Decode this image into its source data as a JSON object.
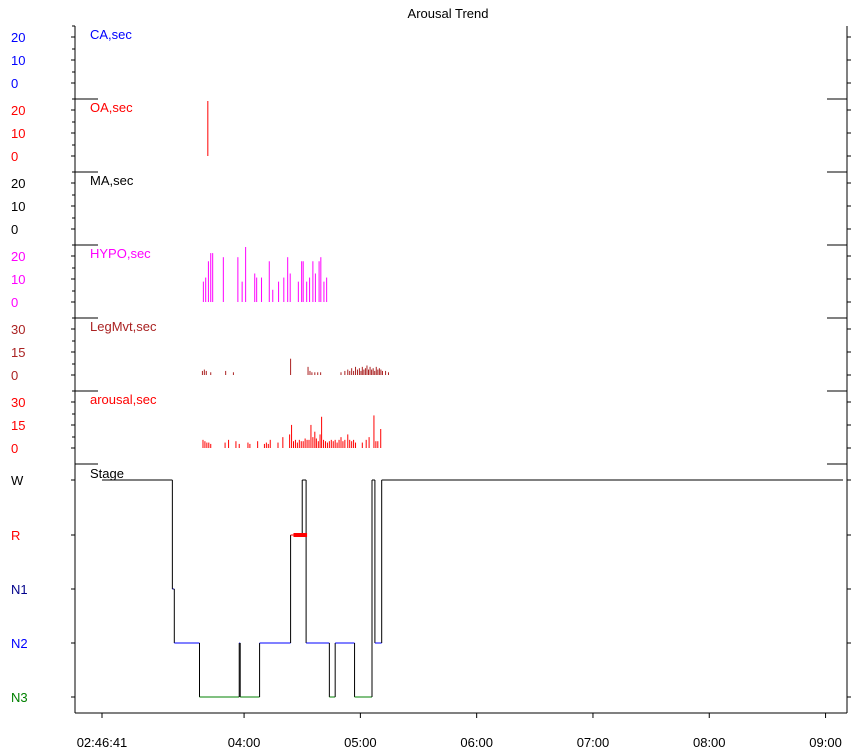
{
  "chart_data": {
    "type": "line",
    "title": "Arousal Trend",
    "x_ticks": [
      "02:46:41",
      "04:00",
      "05:00",
      "06:00",
      "07:00",
      "08:00",
      "09:00"
    ],
    "x_range_min": [
      166.7,
      549
    ],
    "colors": {
      "CA": "#0000ff",
      "OA": "#ff0000",
      "MA": "#000000",
      "HYPO": "#ff00ff",
      "LegMvt": "#aa2222",
      "arousal": "#ff0000",
      "W": "#000000",
      "R": "#ff0000",
      "N1": "#00008b",
      "N2": "#0000ff",
      "N3": "#008000"
    },
    "panels": [
      {
        "key": "CA",
        "title": "CA,sec",
        "ticks": [
          "20",
          "10",
          "0"
        ],
        "ymax": 20,
        "events": []
      },
      {
        "key": "OA",
        "title": "OA,sec",
        "ticks": [
          "20",
          "10",
          "0"
        ],
        "ymax": 20,
        "events": [
          {
            "t": 221.3,
            "v": 30
          }
        ]
      },
      {
        "key": "MA",
        "title": "MA,sec",
        "ticks": [
          "20",
          "10",
          "0"
        ],
        "ymax": 20,
        "events": []
      },
      {
        "key": "HYPO",
        "title": "HYPO,sec",
        "ticks": [
          "20",
          "10",
          "0"
        ],
        "ymax": 20,
        "events": [
          {
            "t": 219.0,
            "v": 10
          },
          {
            "t": 220.2,
            "v": 12
          },
          {
            "t": 221.6,
            "v": 20
          },
          {
            "t": 222.8,
            "v": 24
          },
          {
            "t": 223.8,
            "v": 24
          },
          {
            "t": 229.3,
            "v": 22
          },
          {
            "t": 236.8,
            "v": 22
          },
          {
            "t": 239.0,
            "v": 10
          },
          {
            "t": 240.8,
            "v": 28
          },
          {
            "t": 245.5,
            "v": 14
          },
          {
            "t": 246.5,
            "v": 12
          },
          {
            "t": 249.0,
            "v": 12
          },
          {
            "t": 253.0,
            "v": 20
          },
          {
            "t": 254.8,
            "v": 6
          },
          {
            "t": 257.8,
            "v": 10
          },
          {
            "t": 260.5,
            "v": 12
          },
          {
            "t": 262.5,
            "v": 22
          },
          {
            "t": 263.8,
            "v": 14
          },
          {
            "t": 268.0,
            "v": 10
          },
          {
            "t": 269.7,
            "v": 20
          },
          {
            "t": 270.5,
            "v": 20
          },
          {
            "t": 272.3,
            "v": 10
          },
          {
            "t": 273.8,
            "v": 12
          },
          {
            "t": 275.5,
            "v": 20
          },
          {
            "t": 276.8,
            "v": 14
          },
          {
            "t": 278.7,
            "v": 20
          },
          {
            "t": 279.6,
            "v": 22
          },
          {
            "t": 281.2,
            "v": 10
          },
          {
            "t": 282.6,
            "v": 12
          }
        ]
      },
      {
        "key": "LegMvt",
        "title": "LegMvt,sec",
        "ticks": [
          "30",
          "15",
          "0"
        ],
        "ymax": 30,
        "events": [
          {
            "t": 218.5,
            "v": 3
          },
          {
            "t": 219.5,
            "v": 4
          },
          {
            "t": 220.5,
            "v": 3
          },
          {
            "t": 222.8,
            "v": 2
          },
          {
            "t": 230.5,
            "v": 3
          },
          {
            "t": 234.5,
            "v": 2
          },
          {
            "t": 264.0,
            "v": 12
          },
          {
            "t": 273.0,
            "v": 6
          },
          {
            "t": 274.0,
            "v": 3
          },
          {
            "t": 275.0,
            "v": 2
          },
          {
            "t": 276.5,
            "v": 2
          },
          {
            "t": 278.0,
            "v": 2
          },
          {
            "t": 279.5,
            "v": 2
          },
          {
            "t": 290.0,
            "v": 2
          },
          {
            "t": 292.0,
            "v": 3
          },
          {
            "t": 293.5,
            "v": 4
          },
          {
            "t": 294.5,
            "v": 3
          },
          {
            "t": 295.5,
            "v": 5
          },
          {
            "t": 296.5,
            "v": 3
          },
          {
            "t": 297.5,
            "v": 6
          },
          {
            "t": 298.5,
            "v": 4
          },
          {
            "t": 299.5,
            "v": 5
          },
          {
            "t": 300.3,
            "v": 3
          },
          {
            "t": 301.0,
            "v": 6
          },
          {
            "t": 301.8,
            "v": 4
          },
          {
            "t": 302.6,
            "v": 5
          },
          {
            "t": 303.4,
            "v": 7
          },
          {
            "t": 304.2,
            "v": 4
          },
          {
            "t": 305.0,
            "v": 6
          },
          {
            "t": 305.8,
            "v": 4
          },
          {
            "t": 306.6,
            "v": 5
          },
          {
            "t": 307.4,
            "v": 3
          },
          {
            "t": 308.2,
            "v": 6
          },
          {
            "t": 309.0,
            "v": 4
          },
          {
            "t": 309.8,
            "v": 5
          },
          {
            "t": 310.6,
            "v": 4
          },
          {
            "t": 311.4,
            "v": 3
          },
          {
            "t": 313.0,
            "v": 3
          },
          {
            "t": 314.5,
            "v": 2
          }
        ]
      },
      {
        "key": "arousal",
        "title": "arousal,sec",
        "ticks": [
          "30",
          "15",
          "0"
        ],
        "ymax": 30,
        "events": [
          {
            "t": 218.8,
            "v": 6
          },
          {
            "t": 219.8,
            "v": 5
          },
          {
            "t": 220.8,
            "v": 4
          },
          {
            "t": 221.8,
            "v": 4
          },
          {
            "t": 222.8,
            "v": 3
          },
          {
            "t": 230.2,
            "v": 4
          },
          {
            "t": 232.0,
            "v": 6
          },
          {
            "t": 235.8,
            "v": 5
          },
          {
            "t": 237.5,
            "v": 3
          },
          {
            "t": 242.0,
            "v": 4
          },
          {
            "t": 243.0,
            "v": 3
          },
          {
            "t": 247.0,
            "v": 5
          },
          {
            "t": 250.5,
            "v": 3
          },
          {
            "t": 251.5,
            "v": 4
          },
          {
            "t": 252.5,
            "v": 3
          },
          {
            "t": 253.5,
            "v": 6
          },
          {
            "t": 257.5,
            "v": 4
          },
          {
            "t": 260.0,
            "v": 8
          },
          {
            "t": 263.5,
            "v": 10
          },
          {
            "t": 264.5,
            "v": 17
          },
          {
            "t": 265.5,
            "v": 5
          },
          {
            "t": 266.5,
            "v": 6
          },
          {
            "t": 267.5,
            "v": 4
          },
          {
            "t": 268.5,
            "v": 6
          },
          {
            "t": 269.5,
            "v": 5
          },
          {
            "t": 270.5,
            "v": 5
          },
          {
            "t": 271.5,
            "v": 7
          },
          {
            "t": 272.5,
            "v": 6
          },
          {
            "t": 273.5,
            "v": 6
          },
          {
            "t": 274.5,
            "v": 17
          },
          {
            "t": 275.5,
            "v": 8
          },
          {
            "t": 276.5,
            "v": 12
          },
          {
            "t": 277.3,
            "v": 7
          },
          {
            "t": 278.3,
            "v": 5
          },
          {
            "t": 279.2,
            "v": 10
          },
          {
            "t": 280.0,
            "v": 23
          },
          {
            "t": 281.0,
            "v": 6
          },
          {
            "t": 282.0,
            "v": 5
          },
          {
            "t": 283.0,
            "v": 4
          },
          {
            "t": 284.0,
            "v": 5
          },
          {
            "t": 285.0,
            "v": 6
          },
          {
            "t": 286.0,
            "v": 5
          },
          {
            "t": 287.0,
            "v": 6
          },
          {
            "t": 288.0,
            "v": 4
          },
          {
            "t": 289.0,
            "v": 6
          },
          {
            "t": 290.0,
            "v": 8
          },
          {
            "t": 291.0,
            "v": 5
          },
          {
            "t": 292.0,
            "v": 6
          },
          {
            "t": 293.5,
            "v": 10
          },
          {
            "t": 294.5,
            "v": 6
          },
          {
            "t": 295.5,
            "v": 5
          },
          {
            "t": 296.5,
            "v": 6
          },
          {
            "t": 297.5,
            "v": 4
          },
          {
            "t": 301.0,
            "v": 4
          },
          {
            "t": 303.0,
            "v": 6
          },
          {
            "t": 304.5,
            "v": 8
          },
          {
            "t": 307.0,
            "v": 24
          },
          {
            "t": 308.0,
            "v": 5
          },
          {
            "t": 309.0,
            "v": 5
          },
          {
            "t": 310.5,
            "v": 14
          }
        ]
      }
    ],
    "stage": {
      "title": "Stage",
      "levels": [
        "W",
        "R",
        "N1",
        "N2",
        "N3"
      ],
      "hypnogram": [
        [
          166.7,
          "W"
        ],
        [
          203,
          "W"
        ],
        [
          203,
          "N1"
        ],
        [
          204,
          "N1"
        ],
        [
          204,
          "N2"
        ],
        [
          217,
          "N2"
        ],
        [
          217,
          "N3"
        ],
        [
          237.5,
          "N3"
        ],
        [
          237.5,
          "N2"
        ],
        [
          238,
          "N2"
        ],
        [
          238,
          "N3"
        ],
        [
          248,
          "N3"
        ],
        [
          248,
          "N2"
        ],
        [
          264,
          "N2"
        ],
        [
          264,
          "R"
        ],
        [
          270,
          "R"
        ],
        [
          270,
          "W"
        ],
        [
          272,
          "W"
        ],
        [
          272,
          "N2"
        ],
        [
          284,
          "N2"
        ],
        [
          284,
          "N3"
        ],
        [
          287,
          "N3"
        ],
        [
          287,
          "N2"
        ],
        [
          297,
          "N2"
        ],
        [
          297,
          "N3"
        ],
        [
          306,
          "N3"
        ],
        [
          306,
          "W"
        ],
        [
          307.5,
          "W"
        ],
        [
          307.5,
          "N2"
        ],
        [
          311,
          "N2"
        ],
        [
          311,
          "W"
        ],
        [
          549,
          "W"
        ]
      ],
      "rem_segments": [
        [
          265.5,
          272.5
        ]
      ]
    }
  }
}
